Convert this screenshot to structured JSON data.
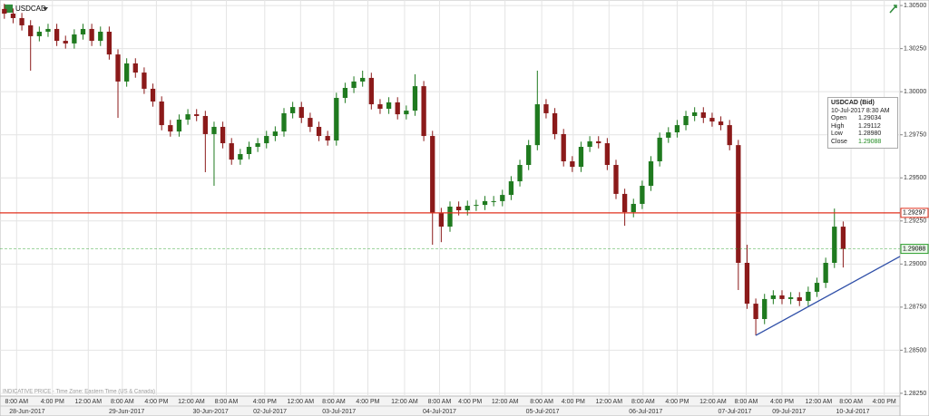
{
  "chart_data": {
    "type": "candlestick",
    "title": "USDCAD",
    "note": "INDICATIVE PRICE - Time Zone: Eastern Time (US & Canada)",
    "xlim": [
      -0.5,
      102.5
    ],
    "ylim": [
      1.28234,
      1.30532
    ],
    "grid": true,
    "up_color": "#1f7a1f",
    "down_color": "#8b1a1a",
    "yticks": [
      {
        "value": 1.305,
        "label": "1.30500"
      },
      {
        "value": 1.3025,
        "label": "1.30250"
      },
      {
        "value": 1.3,
        "label": "1.30000"
      },
      {
        "value": 1.2975,
        "label": "1.29750"
      },
      {
        "value": 1.295,
        "label": "1.29500"
      },
      {
        "value": 1.2925,
        "label": "1.29250"
      },
      {
        "value": 1.29,
        "label": "1.29000"
      },
      {
        "value": 1.2875,
        "label": "1.28750"
      },
      {
        "value": 1.285,
        "label": "1.28500"
      },
      {
        "value": 1.2825,
        "label": "1.28250"
      }
    ],
    "xticks": [
      {
        "value": 1.4,
        "label": "8:00 AM"
      },
      {
        "value": 5.5,
        "label": "4:00 PM"
      },
      {
        "value": 9.6,
        "label": "12:00 AM"
      },
      {
        "value": 13.5,
        "label": "8:00 AM"
      },
      {
        "value": 17.4,
        "label": "4:00 PM"
      },
      {
        "value": 21.4,
        "label": "12:00 AM"
      },
      {
        "value": 25.4,
        "label": "8:00 AM"
      },
      {
        "value": 29.8,
        "label": "4:00 PM"
      },
      {
        "value": 33.9,
        "label": "12:00 AM"
      },
      {
        "value": 37.7,
        "label": "8:00 AM"
      },
      {
        "value": 41.6,
        "label": "4:00 PM"
      },
      {
        "value": 45.8,
        "label": "12:00 AM"
      },
      {
        "value": 49.8,
        "label": "8:00 AM"
      },
      {
        "value": 53.3,
        "label": "4:00 PM"
      },
      {
        "value": 57.3,
        "label": "12:00 AM"
      },
      {
        "value": 61.5,
        "label": "8:00 AM"
      },
      {
        "value": 65.1,
        "label": "4:00 PM"
      },
      {
        "value": 69.2,
        "label": "12:00 AM"
      },
      {
        "value": 73.1,
        "label": "8:00 AM"
      },
      {
        "value": 77.0,
        "label": "4:00 PM"
      },
      {
        "value": 81.1,
        "label": "12:00 AM"
      },
      {
        "value": 84.9,
        "label": "8:00 AM"
      },
      {
        "value": 89.0,
        "label": "4:00 PM"
      },
      {
        "value": 93.2,
        "label": "12:00 AM"
      },
      {
        "value": 96.9,
        "label": "8:00 AM"
      },
      {
        "value": 100.7,
        "label": "4:00 PM"
      }
    ],
    "date_ticks": [
      {
        "value": 2.6,
        "label": "28-Jun-2017"
      },
      {
        "value": 14.0,
        "label": "29-Jun-2017"
      },
      {
        "value": 23.6,
        "label": "30-Jun-2017"
      },
      {
        "value": 30.4,
        "label": "02-Jul-2017"
      },
      {
        "value": 38.3,
        "label": "03-Jul-2017"
      },
      {
        "value": 49.8,
        "label": "04-Jul-2017"
      },
      {
        "value": 61.6,
        "label": "05-Jul-2017"
      },
      {
        "value": 73.4,
        "label": "06-Jul-2017"
      },
      {
        "value": 83.6,
        "label": "07-Jul-2017"
      },
      {
        "value": 89.8,
        "label": "09-Jul-2017"
      },
      {
        "value": 97.1,
        "label": "10-Jul-2017"
      }
    ],
    "open": [
      1.3048,
      1.30453,
      1.30427,
      1.30385,
      1.30322,
      1.30348,
      1.30364,
      1.30295,
      1.3028,
      1.30332,
      1.30364,
      1.30295,
      1.30348,
      1.30216,
      1.30059,
      1.30164,
      1.30111,
      1.30017,
      1.29943,
      1.29806,
      1.29769,
      1.29838,
      1.29869,
      1.29859,
      1.29754,
      1.29796,
      1.29701,
      1.29606,
      1.29638,
      1.2968,
      1.29701,
      1.29743,
      1.29769,
      1.29875,
      1.29911,
      1.29848,
      1.29796,
      1.29743,
      1.29717,
      1.29964,
      1.30022,
      1.30059,
      1.3008,
      1.29927,
      1.29901,
      1.29938,
      1.29869,
      1.2989,
      1.30032,
      1.29743,
      1.29296,
      1.29217,
      1.29333,
      1.29312,
      1.29338,
      1.29343,
      1.29365,
      1.29365,
      1.29401,
      1.2948,
      1.29575,
      1.2969,
      1.29927,
      1.29875,
      1.29754,
      1.29596,
      1.29564,
      1.2968,
      1.29712,
      1.29701,
      1.29575,
      1.29407,
      1.29301,
      1.29349,
      1.29454,
      1.29596,
      1.29733,
      1.29764,
      1.29806,
      1.29859,
      1.2988,
      1.29848,
      1.29827,
      1.29806,
      1.2969,
      1.29007,
      1.2877,
      1.28681,
      1.28797,
      1.28818,
      1.28797,
      1.28807,
      1.28786,
      1.28839,
      1.28891,
      1.29007,
      1.29217
    ],
    "high": [
      1.3051,
      1.30483,
      1.30457,
      1.30415,
      1.30378,
      1.30394,
      1.30394,
      1.30325,
      1.30362,
      1.30394,
      1.30394,
      1.30378,
      1.30378,
      1.30246,
      1.30194,
      1.30194,
      1.30141,
      1.30047,
      1.29973,
      1.29836,
      1.29868,
      1.29899,
      1.29899,
      1.29889,
      1.29826,
      1.29826,
      1.29731,
      1.29668,
      1.2971,
      1.29731,
      1.29773,
      1.29799,
      1.29905,
      1.29941,
      1.29941,
      1.29878,
      1.29826,
      1.29773,
      1.29994,
      1.30052,
      1.30089,
      1.30122,
      1.3011,
      1.29957,
      1.29968,
      1.29968,
      1.2992,
      1.30101,
      1.30062,
      1.29773,
      1.29326,
      1.29363,
      1.29363,
      1.29368,
      1.29373,
      1.29395,
      1.29395,
      1.29431,
      1.2951,
      1.29605,
      1.2972,
      1.30122,
      1.29957,
      1.29905,
      1.29784,
      1.29626,
      1.2971,
      1.29742,
      1.29742,
      1.29731,
      1.29605,
      1.29437,
      1.29379,
      1.29484,
      1.29626,
      1.29763,
      1.29794,
      1.29836,
      1.29889,
      1.2991,
      1.2991,
      1.29878,
      1.29857,
      1.29836,
      1.2972,
      1.29112,
      1.288,
      1.28827,
      1.28848,
      1.28848,
      1.28837,
      1.28837,
      1.28869,
      1.28921,
      1.29037,
      1.29322,
      1.29247
    ],
    "low": [
      1.30423,
      1.30397,
      1.30355,
      1.30122,
      1.30292,
      1.30318,
      1.30265,
      1.3025,
      1.3025,
      1.30302,
      1.30265,
      1.30265,
      1.30186,
      1.29848,
      1.30029,
      1.30081,
      1.29987,
      1.29913,
      1.29776,
      1.29739,
      1.29739,
      1.29808,
      1.29829,
      1.29533,
      1.29454,
      1.29671,
      1.29576,
      1.29576,
      1.29608,
      1.2965,
      1.29671,
      1.29713,
      1.29739,
      1.29845,
      1.29818,
      1.29766,
      1.29713,
      1.29687,
      1.29687,
      1.29934,
      1.29992,
      1.30029,
      1.29897,
      1.29871,
      1.29871,
      1.29839,
      1.29839,
      1.2986,
      1.29713,
      1.29112,
      1.29127,
      1.29187,
      1.29282,
      1.29282,
      1.29308,
      1.29313,
      1.29335,
      1.29335,
      1.29371,
      1.2945,
      1.29545,
      1.2966,
      1.29845,
      1.29724,
      1.29566,
      1.29534,
      1.29534,
      1.2965,
      1.29671,
      1.29545,
      1.29377,
      1.29222,
      1.29271,
      1.29319,
      1.29424,
      1.29566,
      1.29703,
      1.29734,
      1.29776,
      1.29829,
      1.29818,
      1.29797,
      1.29776,
      1.2966,
      1.28849,
      1.2874,
      1.28586,
      1.28651,
      1.28767,
      1.28767,
      1.28767,
      1.28756,
      1.28756,
      1.28809,
      1.28861,
      1.28977,
      1.2898
    ],
    "close": [
      1.30453,
      1.30427,
      1.30385,
      1.30322,
      1.30348,
      1.30364,
      1.30295,
      1.3028,
      1.30332,
      1.30364,
      1.30295,
      1.30348,
      1.30216,
      1.30059,
      1.30164,
      1.30111,
      1.30017,
      1.29943,
      1.29806,
      1.29769,
      1.29838,
      1.29869,
      1.29859,
      1.29754,
      1.29796,
      1.29701,
      1.29606,
      1.29638,
      1.2968,
      1.29701,
      1.29743,
      1.29769,
      1.29875,
      1.29911,
      1.29848,
      1.29796,
      1.29743,
      1.29717,
      1.29964,
      1.30022,
      1.30059,
      1.3008,
      1.29927,
      1.29901,
      1.29938,
      1.29869,
      1.2989,
      1.30032,
      1.29743,
      1.29296,
      1.29217,
      1.29333,
      1.29312,
      1.29338,
      1.29343,
      1.29365,
      1.29365,
      1.29401,
      1.2948,
      1.29575,
      1.2969,
      1.29927,
      1.29875,
      1.29754,
      1.29596,
      1.29564,
      1.2968,
      1.29712,
      1.29701,
      1.29575,
      1.29407,
      1.29301,
      1.29349,
      1.29454,
      1.29596,
      1.29733,
      1.29764,
      1.29806,
      1.29859,
      1.2988,
      1.29848,
      1.29827,
      1.29806,
      1.2969,
      1.29007,
      1.2877,
      1.28681,
      1.28797,
      1.28818,
      1.28797,
      1.28807,
      1.28786,
      1.28839,
      1.28891,
      1.29007,
      1.29217,
      1.29088
    ],
    "price_lines": [
      {
        "value": 1.29297,
        "color": "#e0301e",
        "dashed": false
      },
      {
        "value": 1.29088,
        "color": "#2ca02c",
        "dashed": true
      }
    ],
    "trendline": {
      "x": [
        86,
        102.5
      ],
      "y": [
        1.28586,
        1.29044
      ],
      "color": "#2f4fa8"
    },
    "tooltip": {
      "title": "USDCAD (Bid)",
      "time": "10-Jul-2017 8:30 AM",
      "rows": [
        {
          "name": "Open",
          "value": {
            "value": 1.29034,
            "label": "1.29034"
          }
        },
        {
          "name": "High",
          "value": {
            "value": 1.29112,
            "label": "1.29112"
          }
        },
        {
          "name": "Low",
          "value": {
            "value": 1.2898,
            "label": "1.28980"
          }
        },
        {
          "name": "Close",
          "value": {
            "value": 1.29088,
            "label": "1.29088"
          }
        }
      ]
    }
  }
}
